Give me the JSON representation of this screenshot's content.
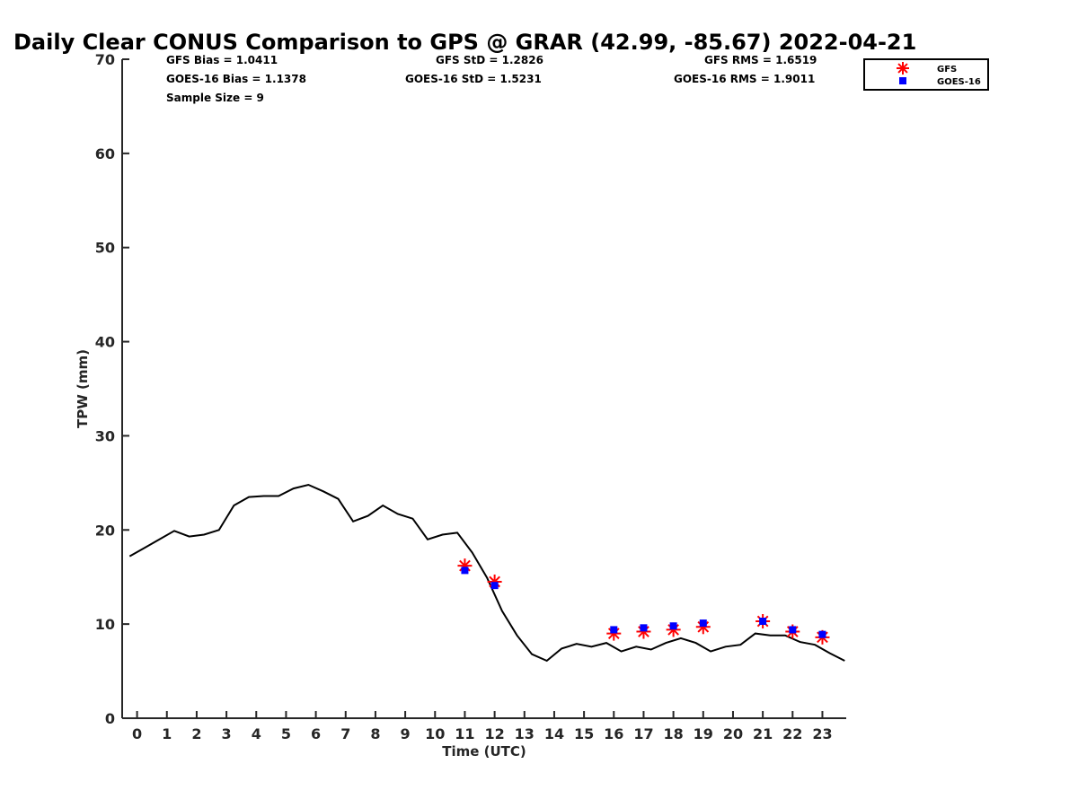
{
  "chart_data": {
    "type": "line",
    "title": "Daily Clear CONUS Comparison to GPS @ GRAR (42.99, -85.67) 2022-04-21",
    "xlabel": "Time (UTC)",
    "ylabel": "TPW (mm)",
    "xlim": [
      -0.5,
      23.8
    ],
    "ylim": [
      0,
      70
    ],
    "xticks": [
      "0",
      "1",
      "2",
      "3",
      "4",
      "5",
      "6",
      "7",
      "8",
      "9",
      "10",
      "11",
      "12",
      "13",
      "14",
      "15",
      "16",
      "17",
      "18",
      "19",
      "20",
      "21",
      "22",
      "23"
    ],
    "yticks": [
      "0",
      "10",
      "20",
      "30",
      "40",
      "50",
      "60",
      "70"
    ],
    "grid": false,
    "legend_position": "top-right",
    "stats": {
      "gfs_bias": "GFS Bias = 1.0411",
      "goes_bias": "GOES-16 Bias = 1.1378",
      "sample_size": "Sample Size = 9",
      "gfs_std": "GFS StD = 1.2826",
      "goes_std": "GOES-16 StD = 1.5231",
      "gfs_rms": "GFS RMS = 1.6519",
      "goes_rms": "GOES-16 RMS = 1.9011"
    },
    "series": [
      {
        "name": "",
        "style": "line",
        "color": "#000000",
        "x": [
          -0.25,
          0.25,
          0.75,
          1.25,
          1.75,
          2.25,
          2.75,
          3.25,
          3.75,
          4.25,
          4.75,
          5.25,
          5.75,
          6.25,
          6.75,
          7.25,
          7.75,
          8.25,
          8.75,
          9.25,
          9.75,
          10.25,
          10.75,
          11.25,
          11.75,
          12.25,
          12.75,
          13.25,
          13.75,
          14.25,
          14.75,
          15.25,
          15.75,
          16.25,
          16.75,
          17.25,
          17.75,
          18.25,
          18.75,
          19.25,
          19.75,
          20.25,
          20.75,
          21.25,
          21.75,
          22.25,
          22.75,
          23.25,
          23.75
        ],
        "y": [
          17.2,
          18.1,
          19.0,
          19.9,
          19.3,
          19.5,
          20.0,
          22.6,
          23.5,
          23.6,
          23.6,
          24.4,
          24.8,
          24.1,
          23.3,
          20.9,
          21.5,
          22.6,
          21.7,
          21.2,
          19.0,
          19.5,
          19.7,
          17.6,
          14.9,
          11.4,
          8.8,
          6.8,
          6.1,
          7.4,
          7.9,
          7.6,
          8.0,
          7.1,
          7.6,
          7.3,
          8.0,
          8.5,
          8.0,
          7.1,
          7.6,
          7.8,
          9.0,
          8.8,
          8.8,
          8.1,
          7.8,
          6.9,
          6.1
        ]
      },
      {
        "name": "GFS",
        "style": "star",
        "color": "#ff0000",
        "x": [
          11,
          12,
          16,
          17,
          18,
          19,
          21,
          22,
          23
        ],
        "y": [
          16.2,
          14.5,
          9.0,
          9.2,
          9.4,
          9.7,
          10.3,
          9.2,
          8.6
        ]
      },
      {
        "name": "GOES-16",
        "style": "square",
        "color": "#0000ff",
        "x": [
          11,
          12,
          16,
          17,
          18,
          19,
          21,
          22,
          23
        ],
        "y": [
          15.7,
          14.1,
          9.4,
          9.6,
          9.8,
          10.1,
          10.3,
          9.4,
          8.9
        ]
      }
    ]
  }
}
